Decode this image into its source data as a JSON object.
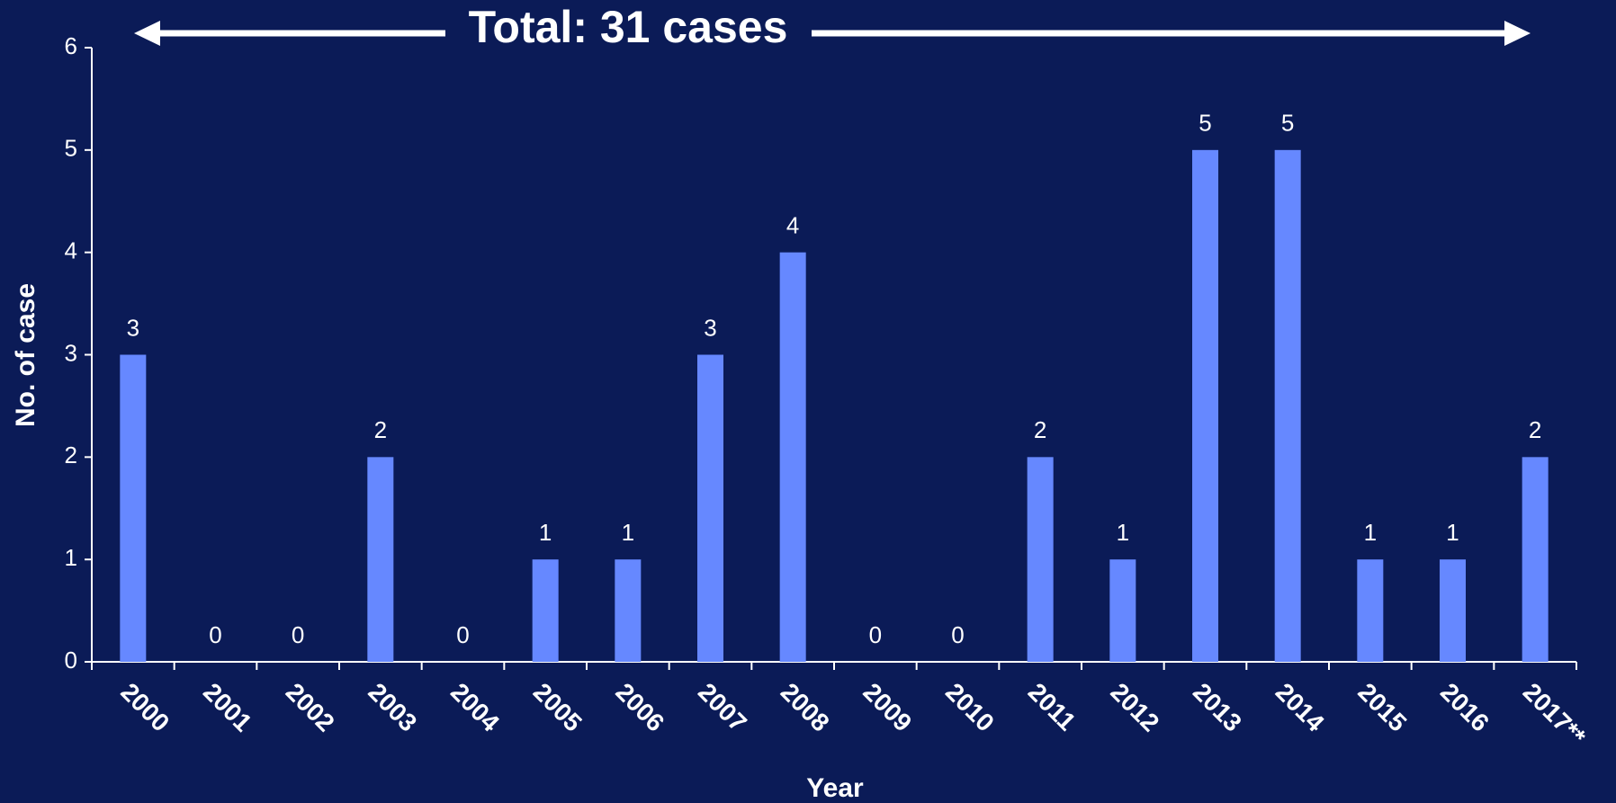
{
  "chart_data": {
    "type": "bar",
    "title": "Total: 31 cases",
    "x_label": "Year",
    "y_label": "No. of  case",
    "categories": [
      "2000",
      "2001",
      "2002",
      "2003",
      "2004",
      "2005",
      "2006",
      "2007",
      "2008",
      "2009",
      "2010",
      "2011",
      "2012",
      "2013",
      "2014",
      "2015",
      "2016",
      "2017**"
    ],
    "values": [
      3,
      0,
      0,
      2,
      0,
      1,
      1,
      3,
      4,
      0,
      0,
      2,
      1,
      5,
      5,
      1,
      1,
      2
    ],
    "color": "#6688ff",
    "ylim": [
      0,
      6
    ],
    "yticks": [
      0,
      1,
      2,
      3,
      4,
      5,
      6
    ],
    "grid": false
  }
}
